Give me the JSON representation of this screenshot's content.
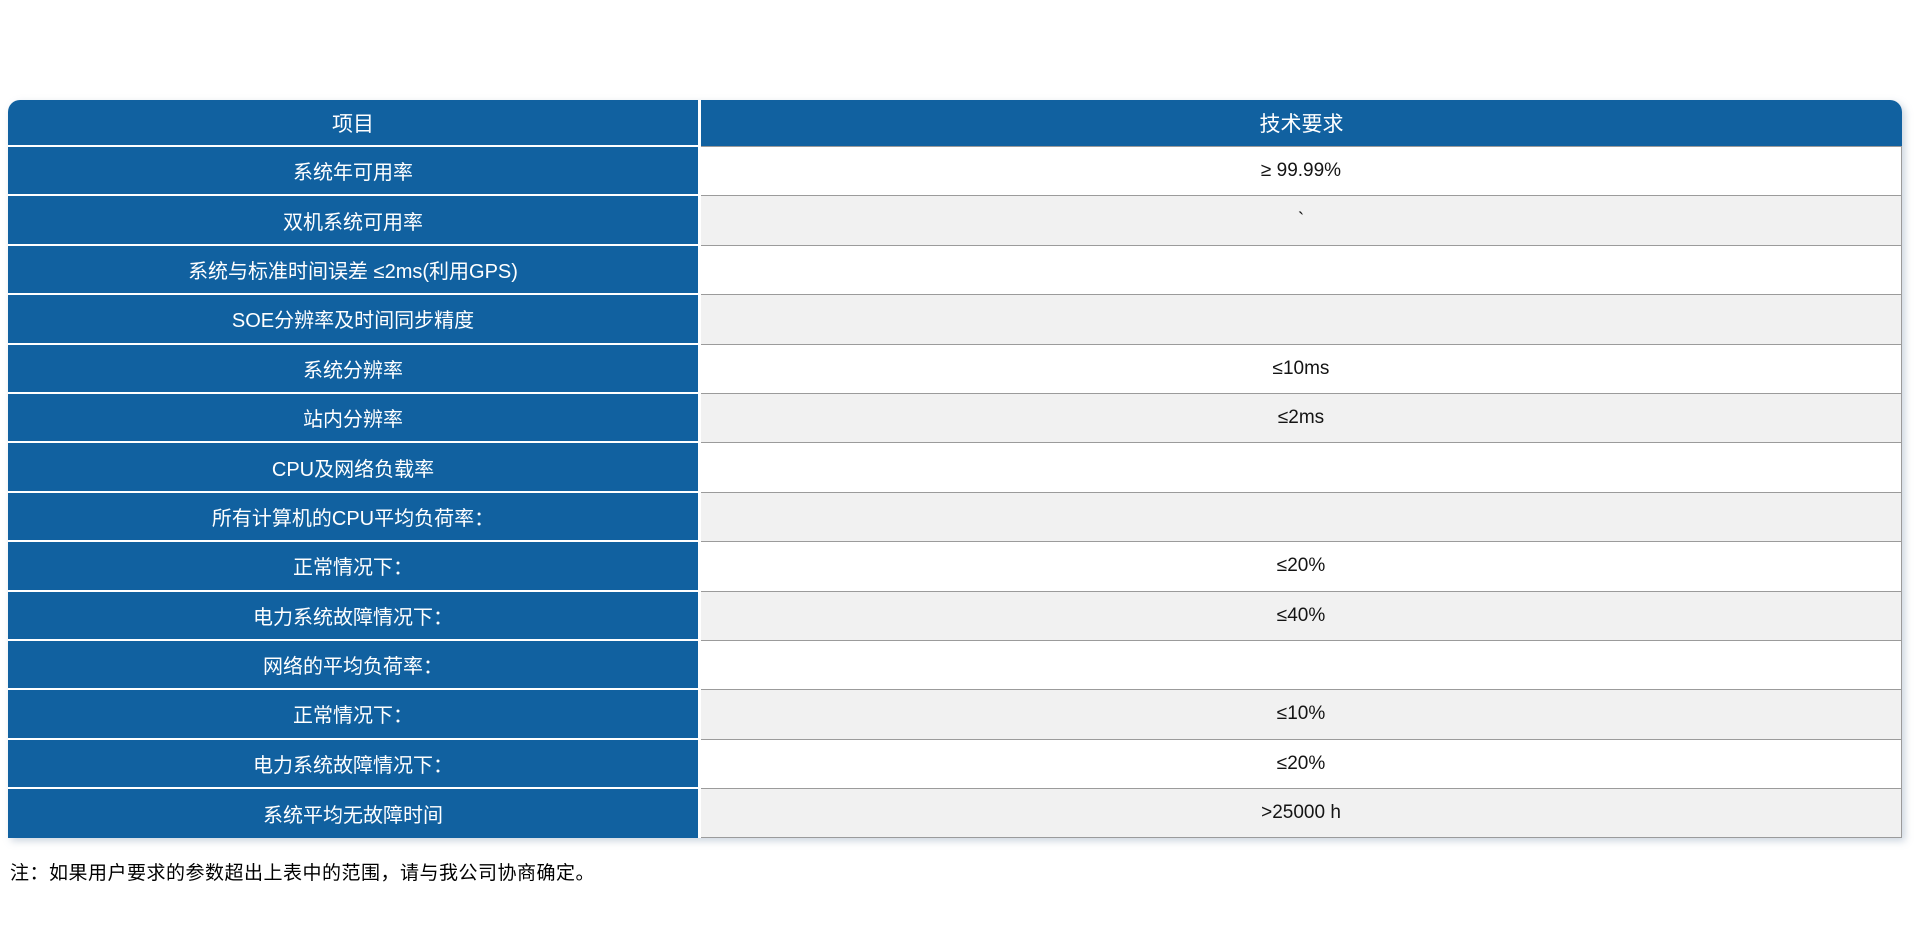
{
  "table": {
    "header": {
      "item": "项目",
      "requirement": "技术要求"
    },
    "rows": [
      {
        "label": "系统年可用率",
        "value": "≥ 99.99%"
      },
      {
        "label": "双机系统可用率",
        "value": "`"
      },
      {
        "label": "系统与标准时间误差 ≤2ms(利用GPS)",
        "value": ""
      },
      {
        "label": "SOE分辨率及时间同步精度",
        "value": ""
      },
      {
        "label": "系统分辨率",
        "value": "≤10ms"
      },
      {
        "label": "站内分辨率",
        "value": "≤2ms"
      },
      {
        "label": "CPU及网络负载率",
        "value": ""
      },
      {
        "label": "所有计算机的CPU平均负荷率：",
        "value": ""
      },
      {
        "label": "正常情况下：",
        "value": "≤20%"
      },
      {
        "label": "电力系统故障情况下：",
        "value": "≤40%"
      },
      {
        "label": "网络的平均负荷率：",
        "value": ""
      },
      {
        "label": "正常情况下：",
        "value": "≤10%"
      },
      {
        "label": "电力系统故障情况下：",
        "value": "≤20%"
      },
      {
        "label": "系统平均无故障时间",
        "value": ">25000 h"
      }
    ]
  },
  "note": "注：如果用户要求的参数超出上表中的范围，请与我公司协商确定。",
  "colors": {
    "header_blue": "#1161A0",
    "row_alt_gray": "#f1f1f1",
    "cell_border_gray": "#9b9b9b"
  }
}
